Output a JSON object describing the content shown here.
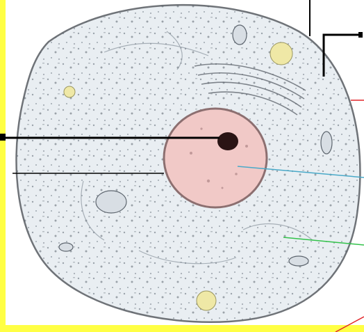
{
  "diagram": {
    "type": "animal-cell-diagram",
    "labels": [],
    "colors": {
      "frame": "#ffff44",
      "background": "#ffffff",
      "cytoplasm": "#e9eef2",
      "membrane": "#6f7378",
      "nucleus": "#f1c9c7",
      "nucleus_border": "#8c6f70",
      "nucleolus": "#2a1414",
      "vacuole": "#efe8a6",
      "line_black": "#000000",
      "line_cyan": "#49a9c8",
      "line_green": "#32c24a",
      "line_red": "#e2262a"
    }
  }
}
